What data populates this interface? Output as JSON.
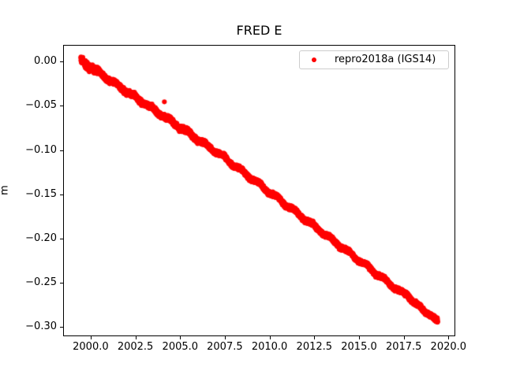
{
  "figure": {
    "background": "#ffffff",
    "text_color": "#000000"
  },
  "chart_data": {
    "type": "scatter",
    "title": "FRED E",
    "xlabel": "",
    "ylabel": "m",
    "grid": false,
    "point_color": "#ff0000",
    "marker": "point",
    "xlim": [
      1998.46,
      2020.36
    ],
    "ylim": [
      -0.3103,
      0.0183
    ],
    "xticks": {
      "values": [
        2000.0,
        2002.5,
        2005.0,
        2007.5,
        2010.0,
        2012.5,
        2015.0,
        2017.5,
        2020.0
      ],
      "labels": [
        "2000.0",
        "2002.5",
        "2005.0",
        "2007.5",
        "2010.0",
        "2012.5",
        "2015.0",
        "2017.5",
        "2020.0"
      ]
    },
    "yticks": {
      "values": [
        0.0,
        -0.05,
        -0.1,
        -0.15,
        -0.2,
        -0.25,
        -0.3
      ],
      "labels": [
        "0.00",
        "−0.05",
        "−0.10",
        "−0.15",
        "−0.20",
        "−0.25",
        "−0.30"
      ]
    },
    "legend": {
      "position": "upper right",
      "entries": [
        {
          "label": "repro2018a (IGS14)",
          "color": "#ff0000",
          "marker": "point"
        }
      ]
    },
    "series": [
      {
        "name": "repro2018a (IGS14)",
        "color": "#ff0000",
        "description": "dense daily position band; anchors of band centerline [decimal_year, meters]",
        "points": [
          [
            1999.45,
            0.003
          ],
          [
            1999.7,
            -0.0029
          ],
          [
            1999.95,
            -0.0078
          ],
          [
            2000.2,
            -0.0087
          ],
          [
            2000.45,
            -0.0106
          ],
          [
            2000.7,
            -0.0165
          ],
          [
            2000.95,
            -0.0214
          ],
          [
            2001.2,
            -0.0223
          ],
          [
            2001.45,
            -0.0242
          ],
          [
            2001.7,
            -0.0301
          ],
          [
            2001.95,
            -0.035
          ],
          [
            2002.2,
            -0.0359
          ],
          [
            2002.45,
            -0.0378
          ],
          [
            2002.7,
            -0.0437
          ],
          [
            2002.95,
            -0.0486
          ],
          [
            2003.2,
            -0.0495
          ],
          [
            2003.45,
            -0.0514
          ],
          [
            2003.7,
            -0.0573
          ],
          [
            2003.95,
            -0.0622
          ],
          [
            2004.2,
            -0.0631
          ],
          [
            2004.45,
            -0.065
          ],
          [
            2004.7,
            -0.0709
          ],
          [
            2004.95,
            -0.0758
          ],
          [
            2005.2,
            -0.0767
          ],
          [
            2005.45,
            -0.0786
          ],
          [
            2005.7,
            -0.0845
          ],
          [
            2005.95,
            -0.0894
          ],
          [
            2006.2,
            -0.0903
          ],
          [
            2006.45,
            -0.0922
          ],
          [
            2006.7,
            -0.0981
          ],
          [
            2006.95,
            -0.103
          ],
          [
            2007.2,
            -0.1039
          ],
          [
            2007.45,
            -0.1063
          ],
          [
            2007.7,
            -0.1126
          ],
          [
            2007.95,
            -0.118
          ],
          [
            2008.2,
            -0.1193
          ],
          [
            2008.45,
            -0.1217
          ],
          [
            2008.7,
            -0.128
          ],
          [
            2008.95,
            -0.1334
          ],
          [
            2009.2,
            -0.1347
          ],
          [
            2009.45,
            -0.1371
          ],
          [
            2009.7,
            -0.1434
          ],
          [
            2009.95,
            -0.1488
          ],
          [
            2010.2,
            -0.1501
          ],
          [
            2010.45,
            -0.1525
          ],
          [
            2010.7,
            -0.1588
          ],
          [
            2010.95,
            -0.1642
          ],
          [
            2011.2,
            -0.1655
          ],
          [
            2011.45,
            -0.1679
          ],
          [
            2011.7,
            -0.1742
          ],
          [
            2011.95,
            -0.1796
          ],
          [
            2012.2,
            -0.1809
          ],
          [
            2012.45,
            -0.1833
          ],
          [
            2012.7,
            -0.1896
          ],
          [
            2012.95,
            -0.195
          ],
          [
            2013.2,
            -0.1963
          ],
          [
            2013.45,
            -0.1987
          ],
          [
            2013.7,
            -0.205
          ],
          [
            2013.95,
            -0.2104
          ],
          [
            2014.2,
            -0.2117
          ],
          [
            2014.45,
            -0.2141
          ],
          [
            2014.7,
            -0.2204
          ],
          [
            2014.95,
            -0.2258
          ],
          [
            2015.2,
            -0.2271
          ],
          [
            2015.45,
            -0.2295
          ],
          [
            2015.7,
            -0.2358
          ],
          [
            2015.95,
            -0.2412
          ],
          [
            2016.2,
            -0.2425
          ],
          [
            2016.45,
            -0.2449
          ],
          [
            2016.7,
            -0.2512
          ],
          [
            2016.95,
            -0.2566
          ],
          [
            2017.2,
            -0.2579
          ],
          [
            2017.45,
            -0.2603
          ],
          [
            2017.7,
            -0.2641
          ],
          [
            2017.95,
            -0.2705
          ],
          [
            2018.2,
            -0.2733
          ],
          [
            2018.45,
            -0.2772
          ],
          [
            2018.7,
            -0.2835
          ],
          [
            2018.95,
            -0.2859
          ],
          [
            2019.2,
            -0.2897
          ],
          [
            2019.4,
            -0.2923
          ]
        ],
        "outliers": [
          [
            2004.12,
            -0.0456
          ]
        ]
      }
    ]
  }
}
